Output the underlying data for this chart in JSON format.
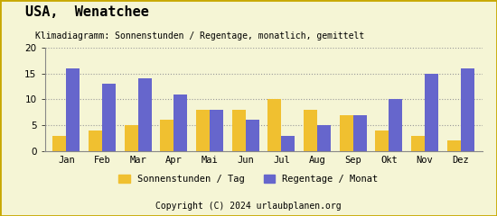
{
  "title": "USA,  Wenatchee",
  "subtitle": "Klimadiagramm: Sonnenstunden / Regentage, monatlich, gemittelt",
  "copyright": "Copyright (C) 2024 urlaubplanen.org",
  "months": [
    "Jan",
    "Feb",
    "Mar",
    "Apr",
    "Mai",
    "Jun",
    "Jul",
    "Aug",
    "Sep",
    "Okt",
    "Nov",
    "Dez"
  ],
  "sonnenstunden": [
    3,
    4,
    5,
    6,
    8,
    8,
    10,
    8,
    7,
    4,
    3,
    2
  ],
  "regentage": [
    16,
    13,
    14,
    11,
    8,
    6,
    3,
    5,
    7,
    10,
    15,
    16
  ],
  "color_sonne": "#f0c030",
  "color_regen": "#6666cc",
  "background_color": "#f5f5d5",
  "footer_color": "#e8a800",
  "footer_text_color": "#000000",
  "border_color": "#c8a800",
  "ylim": [
    0,
    20
  ],
  "yticks": [
    0,
    5,
    10,
    15,
    20
  ],
  "legend_sonne": "Sonnenstunden / Tag",
  "legend_regen": "Regentage / Monat",
  "title_fontsize": 11,
  "subtitle_fontsize": 7,
  "axis_fontsize": 7.5,
  "legend_fontsize": 7.5,
  "bar_width": 0.38
}
